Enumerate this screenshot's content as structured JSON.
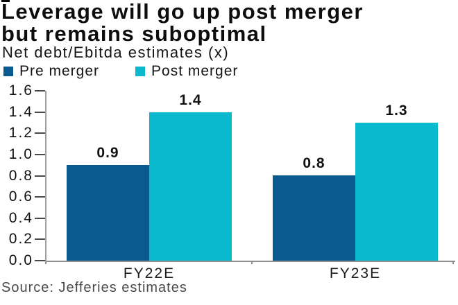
{
  "header": {
    "title_line1": "Leverage will go up post merger",
    "title_line2": "but remains suboptimal",
    "subtitle": "Net debt/Ebitda estimates (x)"
  },
  "source": "Source: Jefferies estimates",
  "colors": {
    "pre_merger": "#0a5a8f",
    "post_merger": "#0bb9cf",
    "axis_line": "#8f8f8f",
    "tick_mark": "#4a4a4a",
    "text": "#111111",
    "source_text": "#4a4a4a"
  },
  "chart_data": {
    "type": "bar",
    "title": "Leverage will go up post merger but remains suboptimal",
    "subtitle": "Net debt/Ebitda estimates (x)",
    "categories": [
      "FY22E",
      "FY23E"
    ],
    "series": [
      {
        "name": "Pre merger",
        "color": "#0a5a8f",
        "values": [
          0.9,
          0.8
        ]
      },
      {
        "name": "Post merger",
        "color": "#0bb9cf",
        "values": [
          1.4,
          1.3
        ]
      }
    ],
    "xlabel": "",
    "ylabel": "",
    "ylim": [
      0,
      1.6
    ],
    "ytick_step": 0.2,
    "ytick_labels": [
      "1.6",
      "1.4",
      "1.2",
      "1.0",
      "0.8",
      "0.6",
      "0.4",
      "0.2",
      "0.0"
    ],
    "grid": false,
    "value_labels": true,
    "legend_position": "top-left",
    "source": "Source: Jefferies estimates"
  }
}
